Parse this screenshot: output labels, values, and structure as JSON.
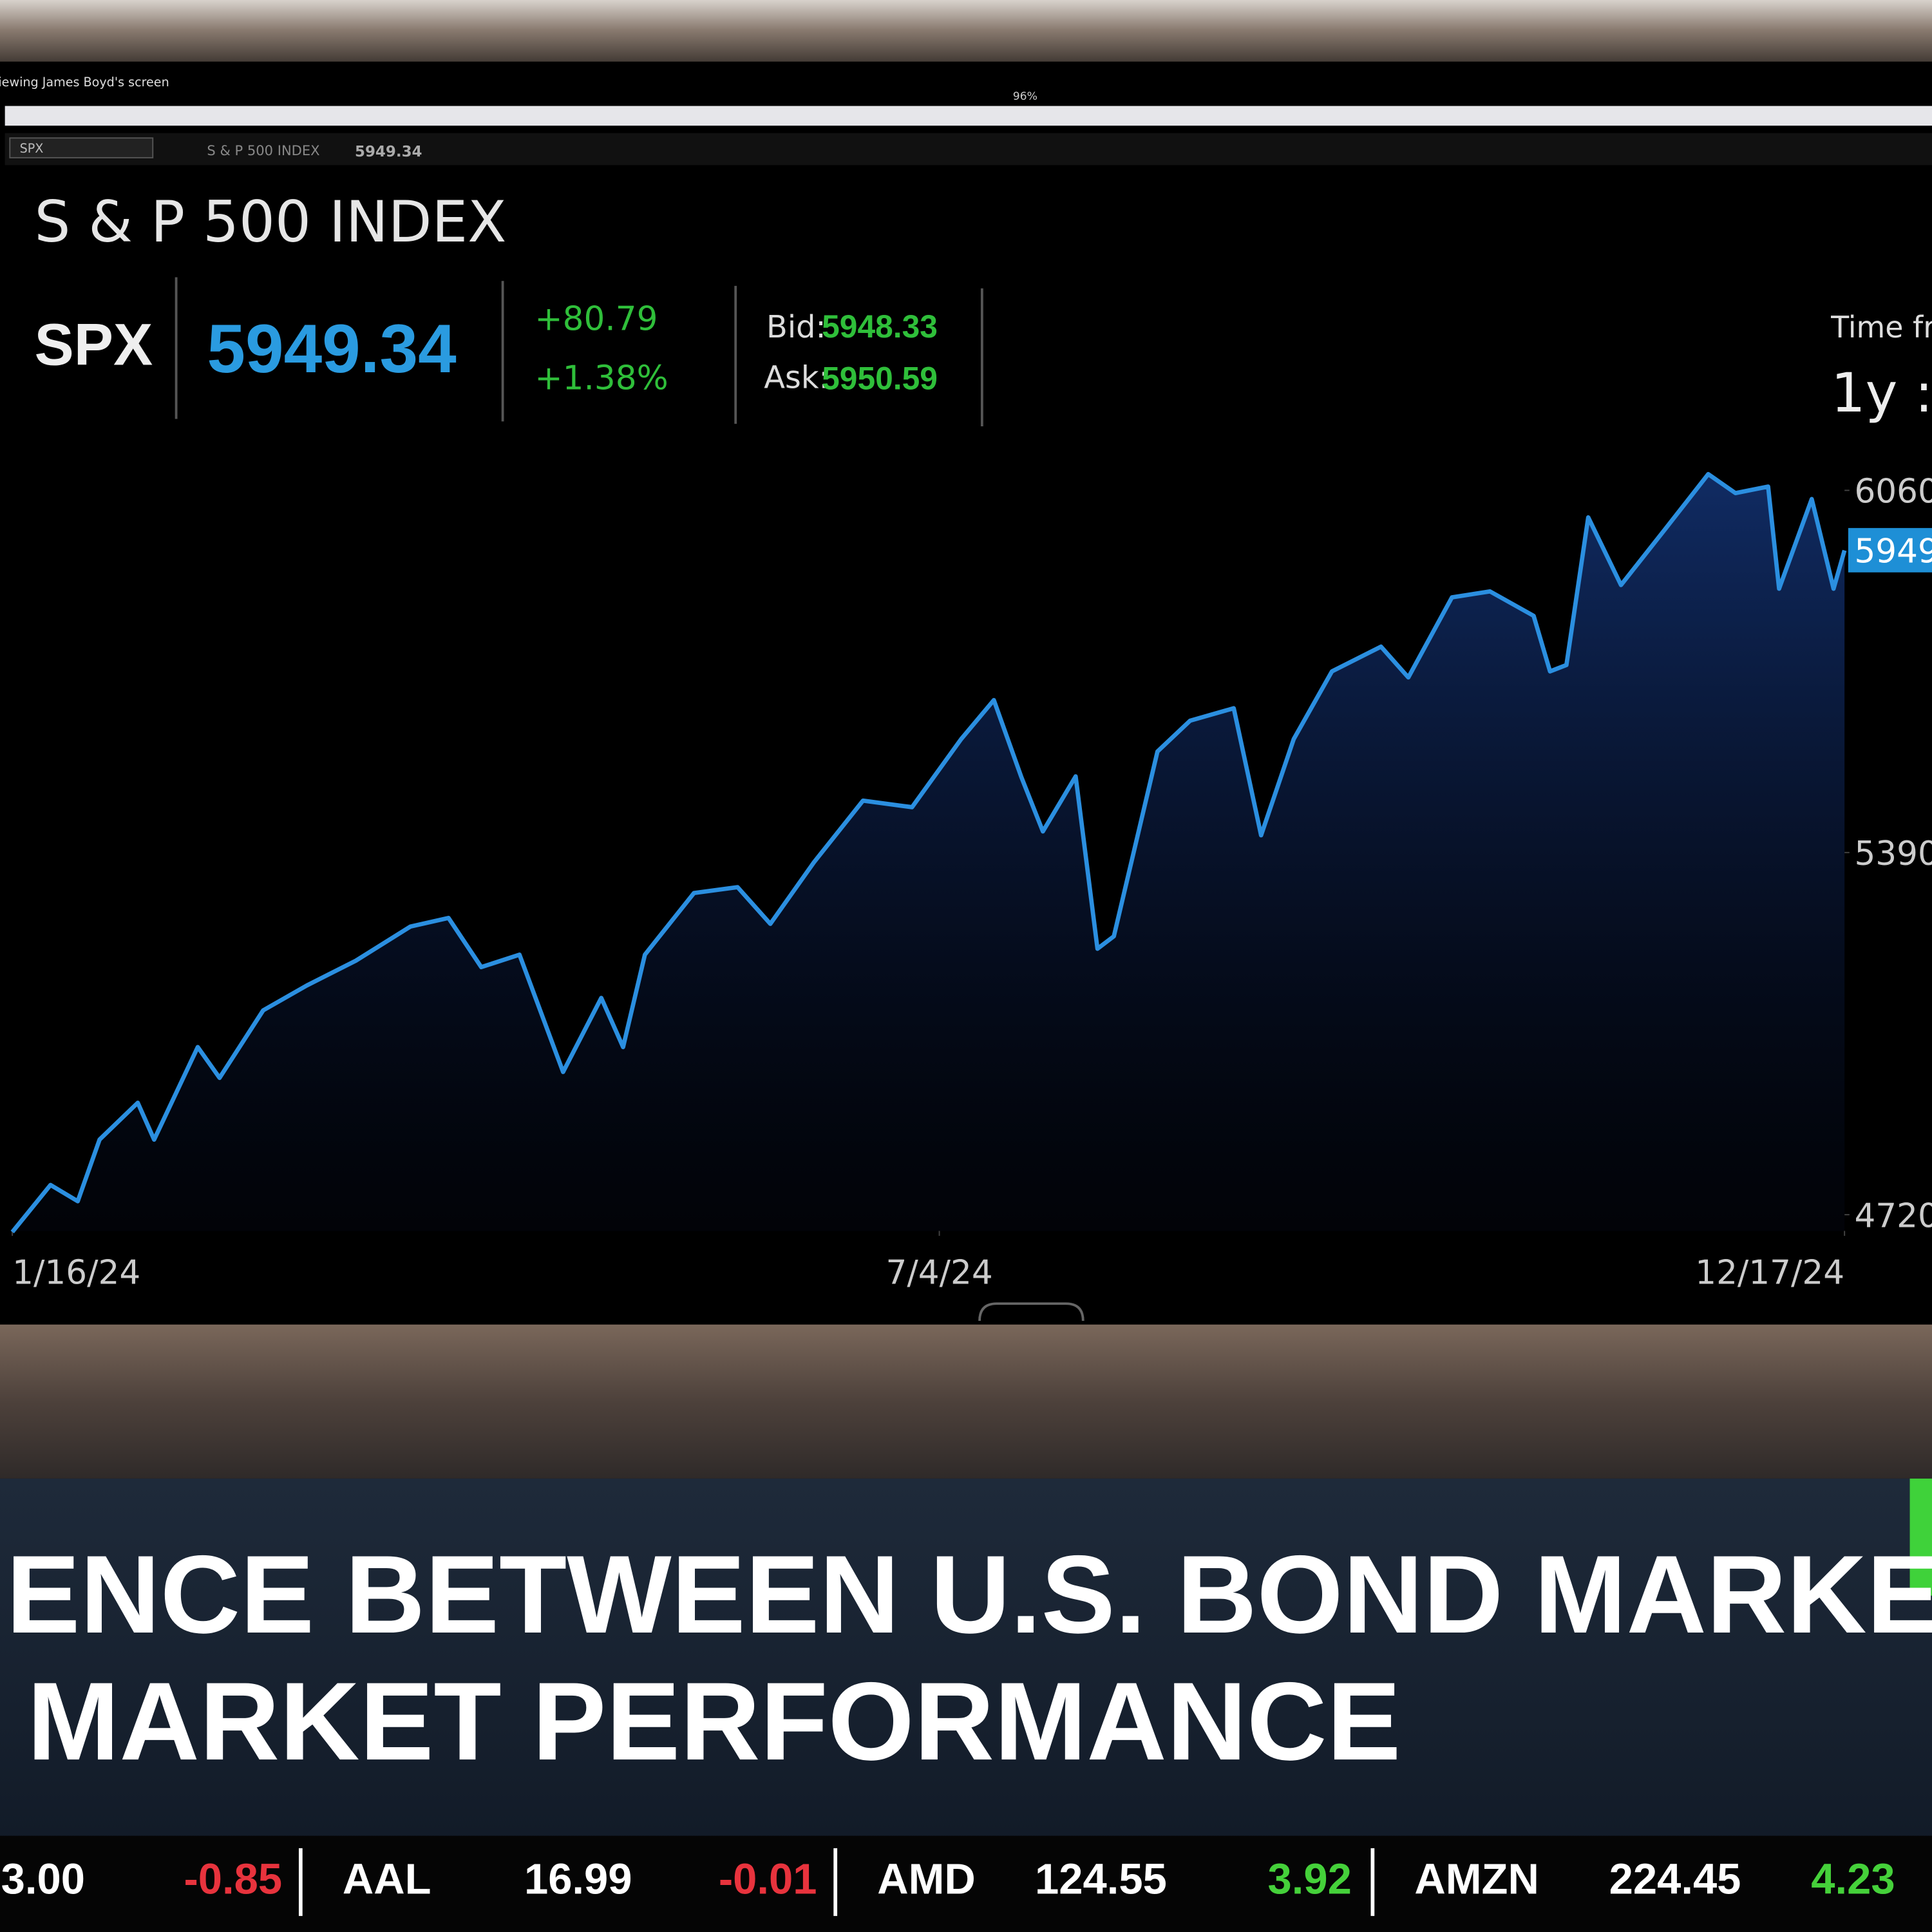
{
  "screen_share": {
    "caption": "Viewing James Boyd's screen",
    "zoom": "96%"
  },
  "toolbar": {
    "symbol": "SPX",
    "name": "S & P 500 INDEX",
    "price": 5949.34
  },
  "quote": {
    "title": "S & P 500 INDEX",
    "symbol": "SPX",
    "price": 5949.34,
    "change": "+80.79",
    "change_percent": "+1.38%",
    "bid_label": "Bid:",
    "bid": 5948.33,
    "ask_label": "Ask:",
    "ask": 5950.59,
    "time_frame_label": "Time fra",
    "time_frame": "1y :"
  },
  "chart_data": {
    "type": "line",
    "x": [
      0,
      7,
      12,
      16,
      23,
      26,
      34,
      38,
      46,
      54,
      63,
      73,
      80,
      86,
      93,
      101,
      108,
      112,
      116,
      125,
      133,
      139,
      147,
      156,
      165,
      174,
      180,
      185,
      189,
      195,
      199,
      202,
      210,
      216,
      224,
      229,
      235,
      242,
      251,
      256,
      264,
      271,
      279,
      282,
      285,
      289,
      295,
      303,
      311,
      316,
      322,
      324,
      330,
      334,
      336
    ],
    "series": [
      {
        "color": "#2b8fe0",
        "values": [
          4688,
          4775,
          4745,
          4859,
          4927,
          4859,
          5030,
          4973,
          5098,
          5144,
          5190,
          5253,
          5269,
          5178,
          5201,
          4984,
          5121,
          5030,
          5201,
          5315,
          5326,
          5258,
          5372,
          5486,
          5474,
          5600,
          5672,
          5531,
          5429,
          5531,
          5212,
          5235,
          5577,
          5634,
          5657,
          5422,
          5600,
          5725,
          5771,
          5714,
          5862,
          5873,
          5828,
          5725,
          5737,
          6010,
          5885,
          5987,
          6090,
          6055,
          6067,
          5878,
          6044,
          5878,
          5949
        ]
      }
    ],
    "xlim": [
      0,
      336
    ],
    "ylim": [
      4690,
      6150
    ],
    "xticks": [
      {
        "value": 0,
        "label": "1/16/24"
      },
      {
        "value": 170,
        "label": "7/4/24"
      },
      {
        "value": 336,
        "label": "12/17/24"
      }
    ],
    "yticks": [
      4720,
      5390,
      6060
    ],
    "price_tag": {
      "value": 5949.34,
      "label": "5949"
    }
  },
  "banner": {
    "lines": [
      "ENCE BETWEEN U.S. BOND MARKET",
      "MARKET PERFORMANCE"
    ]
  },
  "ticker": [
    {
      "symbol": null,
      "price": "3.00",
      "change": -0.85
    },
    {
      "symbol": "AAL",
      "price": 16.99,
      "change": -0.01
    },
    {
      "symbol": "AMD",
      "price": 124.55,
      "change": 3.92
    },
    {
      "symbol": "AMZN",
      "price": 224.45,
      "change": 4.23
    }
  ]
}
